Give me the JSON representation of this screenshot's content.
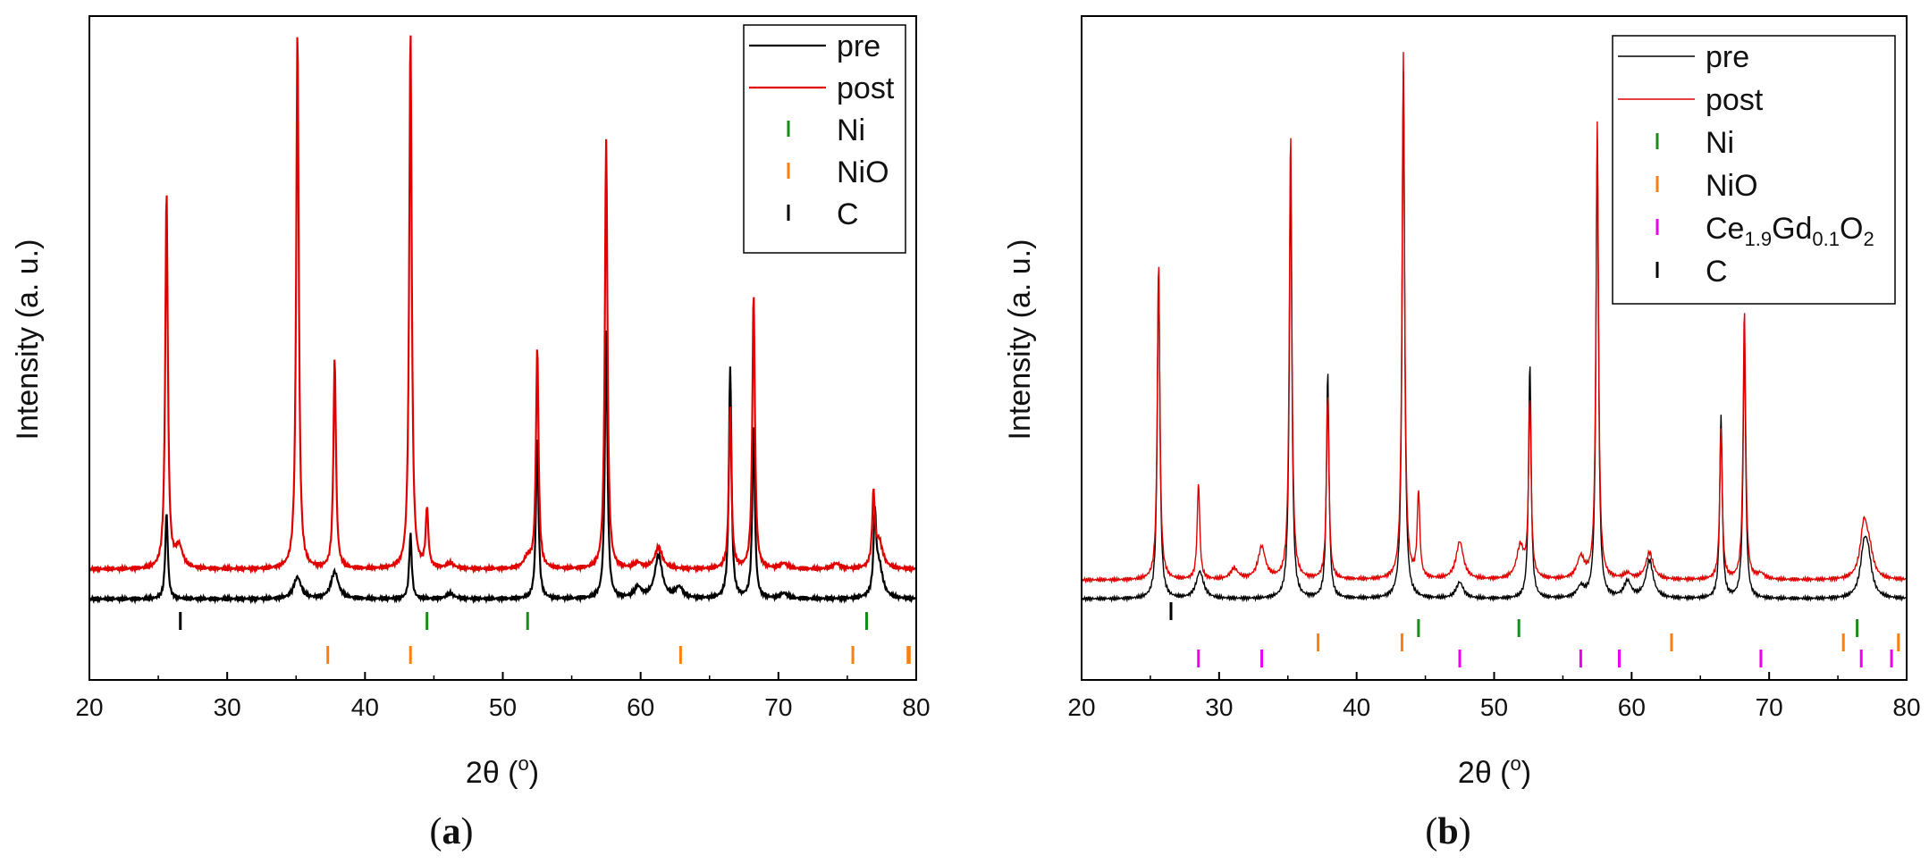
{
  "chart_data": [
    {
      "panel": "a",
      "type": "line",
      "panel_label": {
        "open": "(",
        "letter": "a",
        "close": ")"
      },
      "xlabel": "2θ (°)",
      "xlabel_main": "2θ (",
      "xlabel_sup": "o",
      "xlabel_close": ")",
      "ylabel": "Intensity (a. u.)",
      "xlim": [
        20,
        80
      ],
      "ylim": [
        -0.15,
        1.08
      ],
      "xticks": [
        "20",
        "30",
        "40",
        "50",
        "60",
        "70",
        "80"
      ],
      "legend_position": "top-right",
      "series": [
        {
          "name": "pre",
          "color": "#000000",
          "baseline": 0.0,
          "peaks": [
            [
              25.6,
              0.16
            ],
            [
              35.1,
              0.04
            ],
            [
              37.8,
              0.05
            ],
            [
              43.3,
              0.12
            ],
            [
              46.2,
              0.01
            ],
            [
              52.5,
              0.3
            ],
            [
              57.5,
              0.5
            ],
            [
              59.8,
              0.02
            ],
            [
              61.3,
              0.08
            ],
            [
              62.8,
              0.02
            ],
            [
              66.5,
              0.43
            ],
            [
              68.2,
              0.32
            ],
            [
              70.4,
              0.01
            ],
            [
              77.0,
              0.14
            ],
            [
              77.3,
              0.06
            ]
          ]
        },
        {
          "name": "post",
          "color": "#e00000",
          "baseline": 0.055,
          "peaks": [
            [
              25.6,
              0.7
            ],
            [
              26.5,
              0.04
            ],
            [
              35.1,
              1.0
            ],
            [
              37.8,
              0.39
            ],
            [
              43.3,
              1.0
            ],
            [
              44.5,
              0.11
            ],
            [
              46.2,
              0.01
            ],
            [
              51.8,
              0.02
            ],
            [
              52.5,
              0.41
            ],
            [
              57.5,
              0.8
            ],
            [
              59.8,
              0.01
            ],
            [
              61.3,
              0.04
            ],
            [
              66.5,
              0.3
            ],
            [
              68.2,
              0.51
            ],
            [
              70.4,
              0.01
            ],
            [
              74.2,
              0.01
            ],
            [
              76.9,
              0.13
            ],
            [
              77.3,
              0.05
            ]
          ]
        }
      ],
      "reference_markers": [
        {
          "name": "Ni",
          "color": "#1a8a1a",
          "row": 0,
          "positions": [
            44.5,
            51.8,
            76.4
          ]
        },
        {
          "name": "NiO",
          "color": "#ff7f0e",
          "row": 1,
          "positions": [
            37.3,
            43.3,
            62.9,
            75.4,
            79.4,
            79.5
          ]
        },
        {
          "name": "C",
          "color": "#000000",
          "row": 0,
          "positions": [
            26.6
          ]
        }
      ],
      "legend": [
        {
          "kind": "line",
          "label": "pre",
          "color": "#000000"
        },
        {
          "kind": "line",
          "label": "post",
          "color": "#e00000"
        },
        {
          "kind": "marker",
          "label": "Ni",
          "color": "#1a8a1a"
        },
        {
          "kind": "marker",
          "label": "NiO",
          "color": "#ff7f0e"
        },
        {
          "kind": "marker",
          "label": "C",
          "color": "#000000"
        }
      ]
    },
    {
      "panel": "b",
      "type": "line",
      "panel_label": {
        "open": "(",
        "letter": "b",
        "close": ")"
      },
      "xlabel": "2θ (°)",
      "xlabel_main": "2θ (",
      "xlabel_sup": "o",
      "xlabel_close": ")",
      "ylabel": "Intensity (a. u.)",
      "xlim": [
        20,
        80
      ],
      "ylim": [
        -0.15,
        1.08
      ],
      "xticks": [
        "20",
        "30",
        "40",
        "50",
        "60",
        "70",
        "80"
      ],
      "legend_position": "top-right",
      "series": [
        {
          "name": "pre",
          "color": "#000000",
          "baseline": 0.0,
          "peaks": [
            [
              25.6,
              0.62
            ],
            [
              28.6,
              0.05
            ],
            [
              35.2,
              0.8
            ],
            [
              37.9,
              0.42
            ],
            [
              43.4,
              0.98
            ],
            [
              47.5,
              0.03
            ],
            [
              52.6,
              0.44
            ],
            [
              56.3,
              0.02
            ],
            [
              57.5,
              0.85
            ],
            [
              59.7,
              0.03
            ],
            [
              61.3,
              0.07
            ],
            [
              66.5,
              0.34
            ],
            [
              68.2,
              0.49
            ],
            [
              76.9,
              0.08
            ],
            [
              77.2,
              0.06
            ]
          ]
        },
        {
          "name": "post",
          "color": "#e00000",
          "baseline": 0.035,
          "peaks": [
            [
              25.6,
              0.59
            ],
            [
              28.5,
              0.18
            ],
            [
              31.1,
              0.02
            ],
            [
              33.1,
              0.06
            ],
            [
              35.2,
              0.83
            ],
            [
              37.9,
              0.34
            ],
            [
              43.4,
              0.98
            ],
            [
              44.5,
              0.16
            ],
            [
              47.5,
              0.07
            ],
            [
              51.9,
              0.06
            ],
            [
              52.6,
              0.33
            ],
            [
              56.3,
              0.04
            ],
            [
              57.5,
              0.85
            ],
            [
              59.7,
              0.01
            ],
            [
              61.3,
              0.05
            ],
            [
              66.5,
              0.28
            ],
            [
              68.2,
              0.5
            ],
            [
              69.4,
              0.01
            ],
            [
              76.9,
              0.1
            ],
            [
              77.3,
              0.04
            ]
          ]
        }
      ],
      "reference_markers": [
        {
          "name": "Ni",
          "color": "#1a8a1a",
          "row": 1,
          "positions": [
            44.5,
            51.8,
            76.4
          ]
        },
        {
          "name": "NiO",
          "color": "#ff7f0e",
          "row": 2,
          "positions": [
            37.2,
            43.3,
            62.9,
            75.4,
            79.4
          ]
        },
        {
          "name": "Ce1.9Gd0.1O2",
          "color": "#ee00ee",
          "row": 3,
          "positions": [
            28.5,
            33.1,
            47.5,
            56.3,
            59.1,
            69.4,
            76.7,
            78.9
          ]
        },
        {
          "name": "C",
          "color": "#000000",
          "row": 0,
          "positions": [
            26.5
          ]
        }
      ],
      "legend": [
        {
          "kind": "line",
          "label": "pre",
          "color": "#000000"
        },
        {
          "kind": "line",
          "label": "post",
          "color": "#e00000"
        },
        {
          "kind": "marker",
          "label": "Ni",
          "color": "#1a8a1a"
        },
        {
          "kind": "marker",
          "label": "NiO",
          "color": "#ff7f0e"
        },
        {
          "kind": "marker",
          "label": "Ce1.9Gd0.1O2",
          "color": "#ee00ee",
          "parts": [
            "Ce",
            "1.9",
            "Gd",
            "0.1",
            "O",
            "2"
          ]
        },
        {
          "kind": "marker",
          "label": "C",
          "color": "#000000"
        }
      ]
    }
  ]
}
